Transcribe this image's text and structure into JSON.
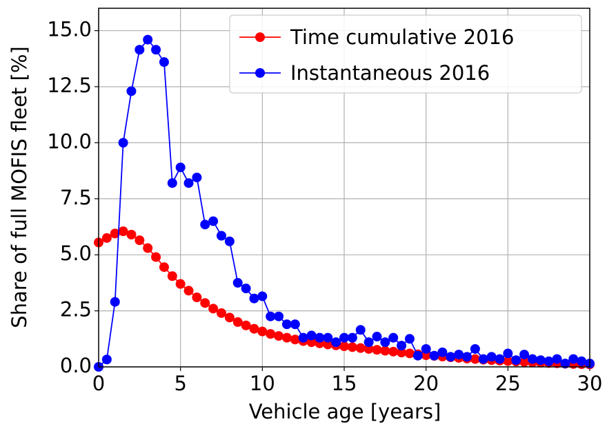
{
  "chart_data": {
    "type": "line",
    "xlabel": "Vehicle age [years]",
    "ylabel": "Share of full MOFIS fleet [%]",
    "x": [
      0,
      0.5,
      1,
      1.5,
      2,
      2.5,
      3,
      3.5,
      4,
      4.5,
      5,
      5.5,
      6,
      6.5,
      7,
      7.5,
      8,
      8.5,
      9,
      9.5,
      10,
      10.5,
      11,
      11.5,
      12,
      12.5,
      13,
      13.5,
      14,
      14.5,
      15,
      15.5,
      16,
      16.5,
      17,
      17.5,
      18,
      18.5,
      19,
      19.5,
      20,
      20.5,
      21,
      21.5,
      22,
      22.5,
      23,
      23.5,
      24,
      24.5,
      25,
      25.5,
      26,
      26.5,
      27,
      27.5,
      28,
      28.5,
      29,
      29.5,
      30
    ],
    "series": [
      {
        "name": "Time cumulative 2016",
        "color": "#ff0000",
        "values": [
          5.55,
          5.75,
          5.95,
          6.05,
          5.9,
          5.65,
          5.3,
          4.9,
          4.45,
          4.05,
          3.7,
          3.4,
          3.1,
          2.85,
          2.6,
          2.4,
          2.2,
          2.0,
          1.85,
          1.7,
          1.58,
          1.47,
          1.38,
          1.3,
          1.22,
          1.15,
          1.1,
          1.05,
          1.0,
          0.96,
          0.92,
          0.88,
          0.84,
          0.8,
          0.76,
          0.72,
          0.68,
          0.64,
          0.6,
          0.56,
          0.52,
          0.49,
          0.46,
          0.43,
          0.4,
          0.37,
          0.35,
          0.32,
          0.3,
          0.28,
          0.26,
          0.24,
          0.22,
          0.2,
          0.19,
          0.17,
          0.16,
          0.14,
          0.13,
          0.12,
          0.11
        ]
      },
      {
        "name": "Instantaneous 2016",
        "color": "#0000ff",
        "values": [
          0,
          0.33,
          2.9,
          10.0,
          12.3,
          14.15,
          14.6,
          14.15,
          13.6,
          8.2,
          8.9,
          8.2,
          8.45,
          6.35,
          6.5,
          5.85,
          5.6,
          3.75,
          3.5,
          3.05,
          3.15,
          2.25,
          2.25,
          1.9,
          1.9,
          1.3,
          1.4,
          1.3,
          1.3,
          1.1,
          1.3,
          1.3,
          1.65,
          1.1,
          1.35,
          1.1,
          1.3,
          0.95,
          1.25,
          0.5,
          0.8,
          0.5,
          0.65,
          0.45,
          0.55,
          0.45,
          0.8,
          0.35,
          0.45,
          0.35,
          0.6,
          0.3,
          0.55,
          0.35,
          0.3,
          0.25,
          0.35,
          0.15,
          0.35,
          0.25,
          0.15
        ]
      }
    ],
    "xlim": [
      0,
      30
    ],
    "xticks": [
      0,
      5,
      10,
      15,
      20,
      25,
      30
    ],
    "ylim": [
      0,
      16
    ],
    "yticks": [
      {
        "value": 0,
        "label": "0.0"
      },
      2.5,
      {
        "value": 5,
        "label": "5.0"
      },
      7.5,
      {
        "value": 10,
        "label": "10.0"
      },
      12.5,
      {
        "value": 15,
        "label": "15.0"
      }
    ],
    "grid": true,
    "legend": "upper right"
  }
}
